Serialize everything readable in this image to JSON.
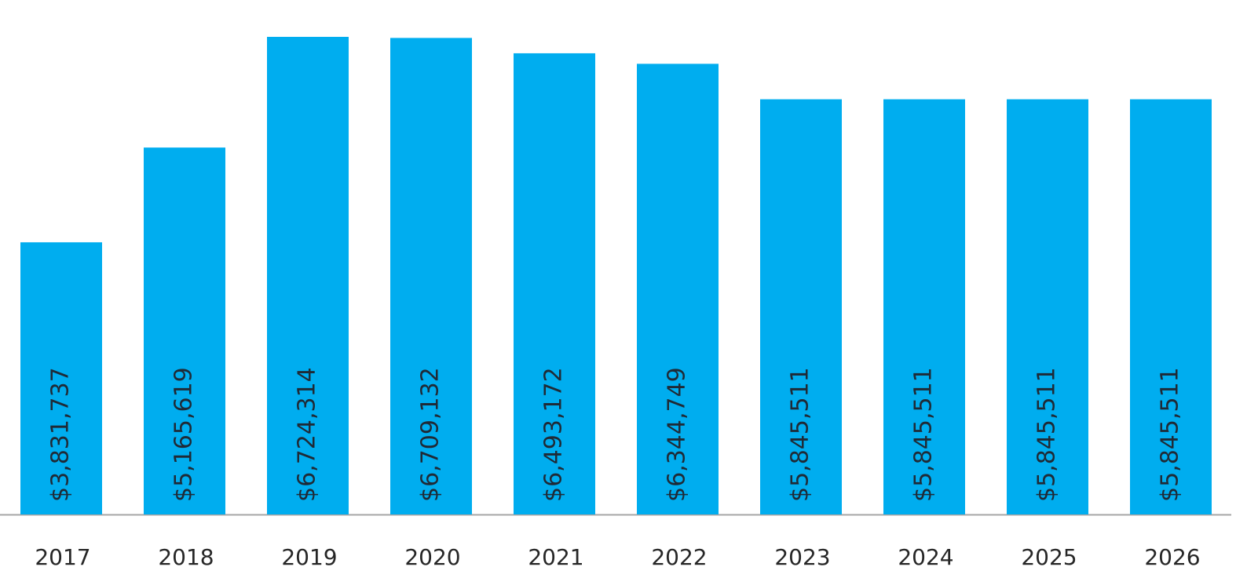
{
  "chart_data": {
    "type": "bar",
    "categories": [
      "2017",
      "2018",
      "2019",
      "2020",
      "2021",
      "2022",
      "2023",
      "2024",
      "2025",
      "2026"
    ],
    "values": [
      3831737,
      5165619,
      6724314,
      6709132,
      6493172,
      6344749,
      5845511,
      5845511,
      5845511,
      5845511
    ],
    "value_labels": [
      "$3,831,737",
      "$5,165,619",
      "$6,724,314",
      "$6,709,132",
      "$6,493,172",
      "$6,344,749",
      "$5,845,511",
      "$5,845,511",
      "$5,845,511",
      "$5,845,511"
    ],
    "color": "#00adef"
  }
}
